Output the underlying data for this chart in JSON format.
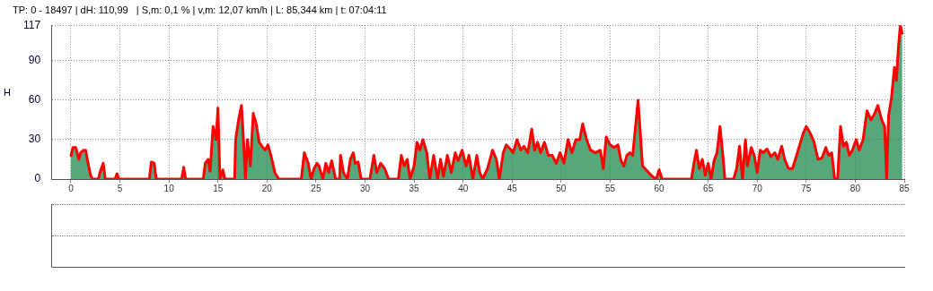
{
  "chart_data": {
    "type": "area",
    "title": "TP: 0 - 18497 | dH: 110,99   | S,m: 0,1 % | v,m: 12,07 km/h | L: 85,344 km | t: 07:04:11",
    "ylabel": "H",
    "xlim": [
      -2,
      85
    ],
    "xticks": [
      0,
      5,
      10,
      15,
      20,
      25,
      30,
      35,
      40,
      45,
      50,
      55,
      60,
      65,
      70,
      75,
      80,
      85
    ],
    "ylim": [
      0,
      117
    ],
    "yticks": [
      0,
      30,
      60,
      90,
      117
    ],
    "grid": true,
    "legend": false,
    "series": [
      {
        "color": "#1e8c50",
        "x": [
          0,
          0.2,
          0.5,
          0.8,
          1.0,
          1.3,
          1.5,
          1.7,
          2.0,
          2.2,
          2.8,
          3.0,
          3.3,
          3.5,
          4.5,
          4.7,
          4.9,
          8.0,
          8.2,
          8.5,
          8.7,
          11.3,
          11.5,
          11.7,
          13.5,
          13.7,
          14.0,
          14.2,
          14.5,
          14.8,
          15.0,
          15.2,
          15.5,
          15.7,
          16.7,
          16.8,
          17.1,
          17.4,
          17.6,
          17.8,
          18.0,
          18.3,
          18.6,
          18.9,
          19.2,
          19.5,
          19.8,
          20.1,
          20.4,
          20.8,
          21.2,
          23.5,
          23.8,
          24.2,
          24.5,
          24.8,
          25.1,
          25.3,
          25.7,
          26.0,
          26.3,
          26.6,
          27.0,
          27.4,
          27.5,
          27.8,
          28.2,
          28.5,
          28.8,
          29.0,
          29.3,
          29.6,
          30.5,
          30.9,
          31.2,
          31.6,
          32.0,
          32.4,
          33.4,
          33.7,
          34.0,
          34.3,
          34.6,
          35.0,
          35.3,
          35.6,
          35.9,
          36.3,
          36.6,
          37.0,
          37.4,
          37.7,
          38.0,
          38.4,
          38.8,
          39.2,
          39.5,
          39.9,
          40.3,
          40.6,
          41.0,
          41.4,
          41.7,
          42.0,
          42.5,
          43.0,
          43.4,
          43.7,
          44.1,
          44.4,
          44.8,
          45.1,
          45.5,
          45.9,
          46.2,
          46.6,
          47.0,
          47.3,
          47.6,
          47.9,
          48.3,
          48.7,
          49.1,
          49.5,
          49.9,
          50.3,
          50.7,
          51.1,
          51.5,
          51.9,
          52.2,
          52.6,
          53.0,
          53.5,
          54.0,
          54.3,
          54.6,
          55.0,
          55.4,
          55.8,
          56.1,
          56.4,
          56.7,
          57.0,
          57.3,
          57.85,
          58.3,
          58.8,
          59.3,
          59.7,
          60.0,
          60.3,
          63.3,
          63.5,
          63.8,
          64.1,
          64.4,
          64.7,
          65.0,
          65.3,
          65.6,
          65.9,
          66.2,
          66.5,
          66.7,
          67.6,
          67.9,
          68.2,
          68.5,
          68.8,
          69.0,
          69.4,
          69.7,
          70.0,
          70.3,
          70.6,
          71.0,
          71.4,
          71.8,
          72.1,
          72.5,
          72.8,
          73.2,
          73.6,
          73.9,
          74.3,
          74.7,
          75.0,
          75.4,
          75.8,
          76.2,
          76.6,
          77.0,
          77.3,
          77.6,
          77.9,
          78.2,
          78.5,
          78.8,
          79.1,
          79.4,
          79.7,
          80.1,
          80.4,
          80.8,
          81.2,
          81.6,
          82.0,
          82.3,
          82.7,
          83.0,
          83.2,
          83.4,
          83.7,
          84.0,
          84.2,
          84.4,
          84.6,
          84.8
        ],
        "values": [
          17,
          24,
          24,
          15,
          20,
          22,
          22,
          14,
          3,
          0,
          0,
          6,
          12,
          0,
          0,
          4,
          0,
          0,
          13,
          12,
          0,
          0,
          9,
          0,
          0,
          12,
          15,
          6,
          40,
          30,
          54,
          0,
          7,
          0,
          0,
          30,
          45,
          56,
          30,
          0,
          30,
          10,
          50,
          42,
          28,
          25,
          22,
          26,
          18,
          5,
          0,
          0,
          20,
          12,
          0,
          8,
          12,
          10,
          0,
          12,
          5,
          14,
          0,
          0,
          18,
          5,
          0,
          15,
          20,
          12,
          13,
          0,
          0,
          18,
          5,
          12,
          8,
          0,
          0,
          18,
          10,
          15,
          0,
          10,
          28,
          22,
          30,
          20,
          0,
          18,
          0,
          15,
          2,
          18,
          5,
          20,
          14,
          22,
          10,
          18,
          0,
          18,
          5,
          0,
          8,
          22,
          15,
          0,
          20,
          26,
          23,
          20,
          30,
          22,
          25,
          20,
          38,
          22,
          28,
          20,
          28,
          18,
          18,
          12,
          20,
          12,
          30,
          20,
          30,
          30,
          42,
          30,
          22,
          20,
          22,
          8,
          32,
          26,
          24,
          26,
          14,
          10,
          18,
          20,
          18,
          60,
          10,
          6,
          2,
          0,
          7,
          0,
          0,
          10,
          22,
          8,
          15,
          3,
          12,
          0,
          14,
          20,
          40,
          18,
          0,
          0,
          8,
          25,
          0,
          30,
          10,
          24,
          18,
          5,
          22,
          20,
          23,
          17,
          20,
          15,
          25,
          15,
          8,
          8,
          15,
          25,
          35,
          40,
          35,
          28,
          15,
          16,
          24,
          18,
          20,
          0,
          0,
          40,
          25,
          28,
          18,
          22,
          30,
          22,
          30,
          52,
          45,
          50,
          56,
          45,
          40,
          0,
          48,
          62,
          85,
          75,
          100,
          117,
          110
        ]
      }
    ]
  }
}
